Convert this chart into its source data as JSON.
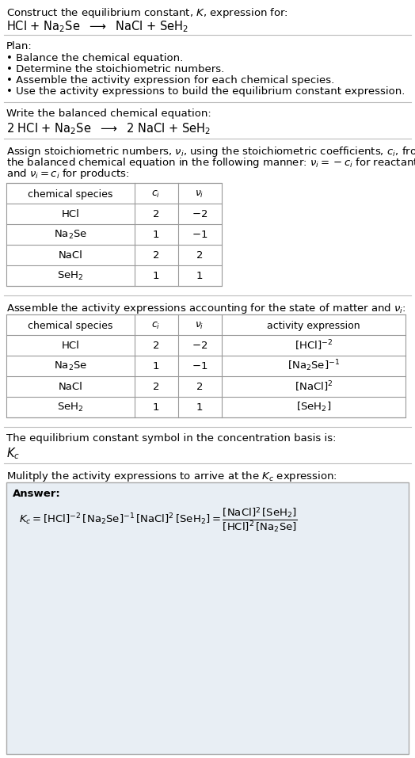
{
  "title_line1": "Construct the equilibrium constant, $K$, expression for:",
  "title_line2": "HCl + Na$_2$Se  $\\longrightarrow$  NaCl + SeH$_2$",
  "plan_header": "Plan:",
  "plan_items": [
    "• Balance the chemical equation.",
    "• Determine the stoichiometric numbers.",
    "• Assemble the activity expression for each chemical species.",
    "• Use the activity expressions to build the equilibrium constant expression."
  ],
  "balanced_header": "Write the balanced chemical equation:",
  "balanced_eq": "2 HCl + Na$_2$Se  $\\longrightarrow$  2 NaCl + SeH$_2$",
  "stoich_intro_lines": [
    "Assign stoichiometric numbers, $\\nu_i$, using the stoichiometric coefficients, $c_i$, from",
    "the balanced chemical equation in the following manner: $\\nu_i = -c_i$ for reactants",
    "and $\\nu_i = c_i$ for products:"
  ],
  "table1_headers": [
    "chemical species",
    "$c_i$",
    "$\\nu_i$"
  ],
  "table1_rows": [
    [
      "HCl",
      "2",
      "$-2$"
    ],
    [
      "Na$_2$Se",
      "1",
      "$-1$"
    ],
    [
      "NaCl",
      "2",
      "2"
    ],
    [
      "SeH$_2$",
      "1",
      "1"
    ]
  ],
  "activity_intro": "Assemble the activity expressions accounting for the state of matter and $\\nu_i$:",
  "table2_headers": [
    "chemical species",
    "$c_i$",
    "$\\nu_i$",
    "activity expression"
  ],
  "table2_rows": [
    [
      "HCl",
      "2",
      "$-2$",
      "$[\\mathrm{HCl}]^{-2}$"
    ],
    [
      "Na$_2$Se",
      "1",
      "$-1$",
      "$[\\mathrm{Na_2Se}]^{-1}$"
    ],
    [
      "NaCl",
      "2",
      "2",
      "$[\\mathrm{NaCl}]^{2}$"
    ],
    [
      "SeH$_2$",
      "1",
      "1",
      "$[\\mathrm{SeH_2}]$"
    ]
  ],
  "kc_intro": "The equilibrium constant symbol in the concentration basis is:",
  "kc_symbol": "$K_c$",
  "multiply_intro": "Mulitply the activity expressions to arrive at the $K_c$ expression:",
  "answer_label": "Answer:",
  "kc_expr_line1": "$K_c = [\\mathrm{HCl}]^{-2}\\,[\\mathrm{Na_2Se}]^{-1}\\,[\\mathrm{NaCl}]^2\\,[\\mathrm{SeH_2}] = \\dfrac{[\\mathrm{NaCl}]^2\\,[\\mathrm{SeH_2}]}{[\\mathrm{HCl}]^2\\,[\\mathrm{Na_2Se}]}$",
  "bg_color": "#ffffff",
  "answer_bg_color": "#e8eef4",
  "font_size": 9.5
}
